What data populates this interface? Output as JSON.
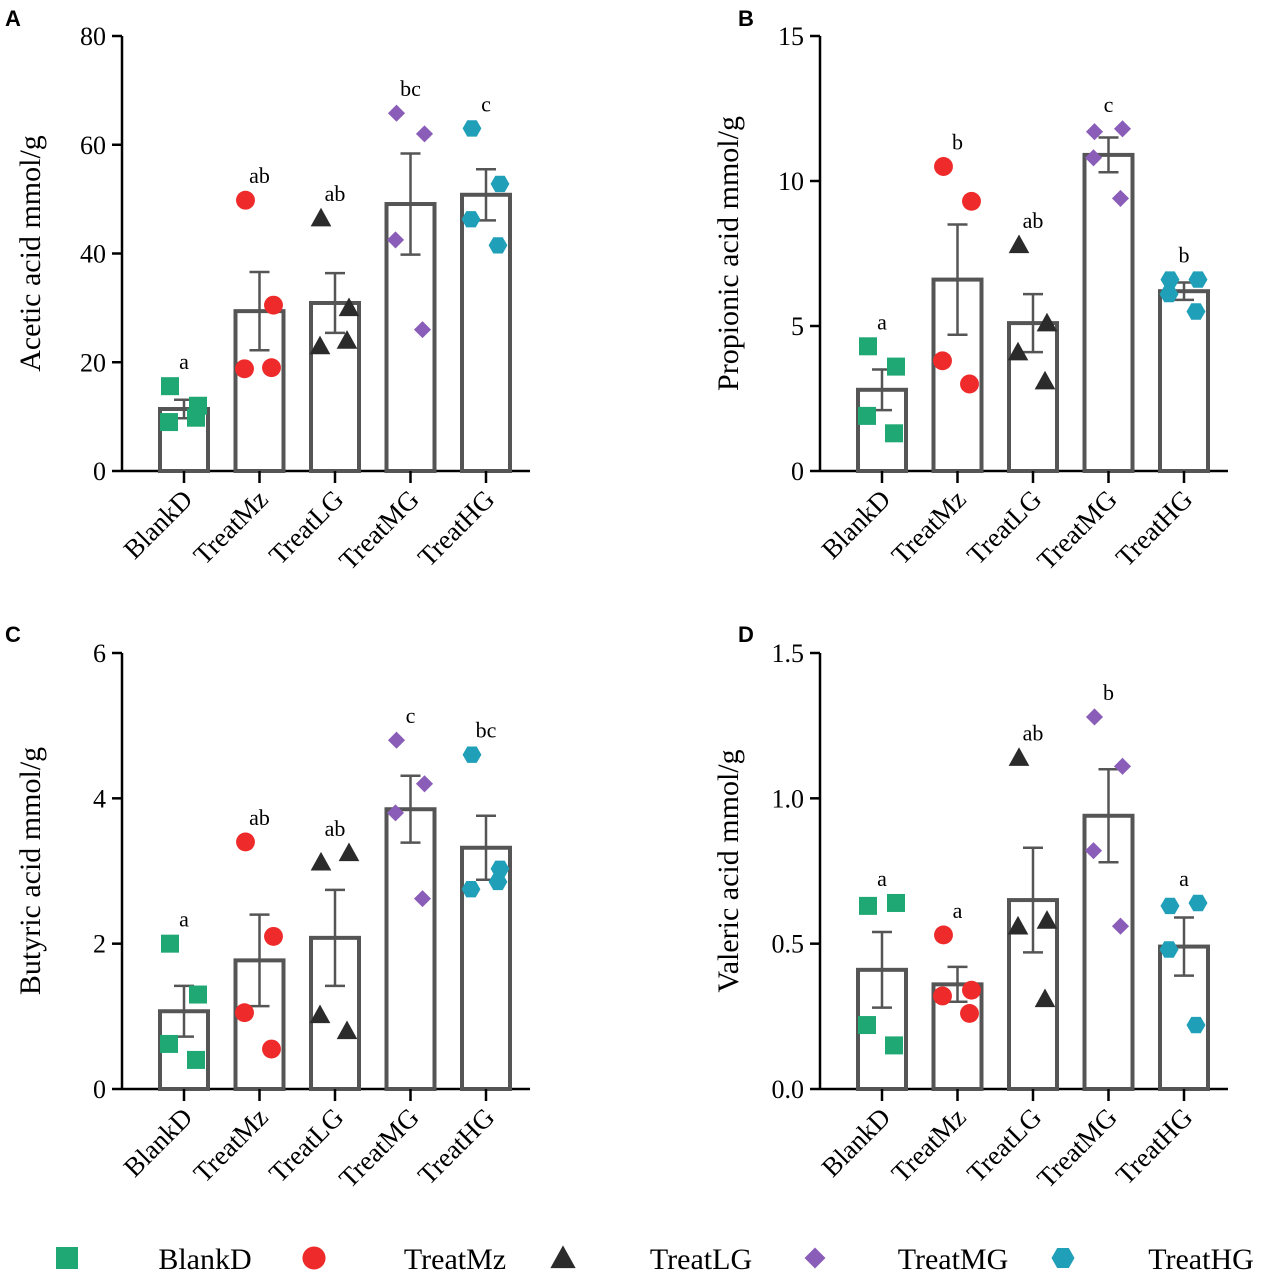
{
  "groups": [
    {
      "name": "BlankD",
      "shape": "square",
      "color": "#1fa774"
    },
    {
      "name": "TreatMz",
      "shape": "circle",
      "color": "#ee2a2a"
    },
    {
      "name": "TreatLG",
      "shape": "triangle",
      "color": "#2b2b2b"
    },
    {
      "name": "TreatMG",
      "shape": "diamond",
      "color": "#8a5db8"
    },
    {
      "name": "TreatHG",
      "shape": "hexagon",
      "color": "#1f9fb8"
    }
  ],
  "chart_data": [
    {
      "panel": "A",
      "type": "bar",
      "ylabel": "Acetic acid mmol/g",
      "ylim": [
        0,
        80
      ],
      "yticks": [
        "0",
        "20",
        "40",
        "60",
        "80"
      ],
      "categories": [
        "BlankD",
        "TreatMz",
        "TreatLG",
        "TreatMG",
        "TreatHG"
      ],
      "means": [
        11.4,
        29.4,
        30.9,
        49.1,
        50.8
      ],
      "sem": [
        1.7,
        7.2,
        5.5,
        9.3,
        4.7
      ],
      "significance": [
        "a",
        "ab",
        "ab",
        "bc",
        "c"
      ],
      "points": [
        [
          15.6,
          12.0,
          9.0,
          9.8
        ],
        [
          49.8,
          30.5,
          18.8,
          19.0
        ],
        [
          46.5,
          30.0,
          23.0,
          24.0
        ],
        [
          65.8,
          62.0,
          42.5,
          26.0
        ],
        [
          63.0,
          52.8,
          46.3,
          41.5
        ]
      ]
    },
    {
      "panel": "B",
      "type": "bar",
      "ylabel": "Propionic acid mmol/g",
      "ylim": [
        0,
        15
      ],
      "yticks": [
        "0",
        "5",
        "10",
        "15"
      ],
      "categories": [
        "BlankD",
        "TreatMz",
        "TreatLG",
        "TreatMG",
        "TreatHG"
      ],
      "means": [
        2.8,
        6.6,
        5.1,
        10.9,
        6.2
      ],
      "sem": [
        0.7,
        1.9,
        1.0,
        0.6,
        0.3
      ],
      "significance": [
        "a",
        "b",
        "ab",
        "c",
        "b"
      ],
      "points": [
        [
          4.3,
          3.6,
          1.9,
          1.3
        ],
        [
          10.5,
          9.3,
          3.8,
          3.0
        ],
        [
          7.8,
          5.1,
          4.1,
          3.1
        ],
        [
          11.7,
          11.8,
          10.8,
          9.4
        ],
        [
          6.6,
          6.6,
          6.1,
          5.5
        ]
      ]
    },
    {
      "panel": "C",
      "type": "bar",
      "ylabel": "Butyric acid mmol/g",
      "ylim": [
        0,
        6
      ],
      "yticks": [
        "0",
        "2",
        "4",
        "6"
      ],
      "categories": [
        "BlankD",
        "TreatMz",
        "TreatLG",
        "TreatMG",
        "TreatHG"
      ],
      "means": [
        1.07,
        1.77,
        2.08,
        3.85,
        3.32
      ],
      "sem": [
        0.35,
        0.63,
        0.66,
        0.46,
        0.44
      ],
      "significance": [
        "a",
        "ab",
        "ab",
        "c",
        "bc"
      ],
      "points": [
        [
          2.0,
          1.3,
          0.62,
          0.4
        ],
        [
          3.4,
          2.1,
          1.05,
          0.55
        ],
        [
          3.12,
          3.25,
          1.02,
          0.8
        ],
        [
          4.8,
          4.2,
          3.8,
          2.62
        ],
        [
          4.6,
          3.03,
          2.75,
          2.85
        ]
      ]
    },
    {
      "panel": "D",
      "type": "bar",
      "ylabel": "Valeric acid mmol/g",
      "ylim": [
        0,
        1.5
      ],
      "yticks": [
        "0.0",
        "0.5",
        "1.0",
        "1.5"
      ],
      "categories": [
        "BlankD",
        "TreatMz",
        "TreatLG",
        "TreatMG",
        "TreatHG"
      ],
      "means": [
        0.41,
        0.36,
        0.65,
        0.94,
        0.49
      ],
      "sem": [
        0.13,
        0.06,
        0.18,
        0.16,
        0.1
      ],
      "significance": [
        "a",
        "a",
        "ab",
        "b",
        "a"
      ],
      "points": [
        [
          0.63,
          0.64,
          0.22,
          0.15
        ],
        [
          0.53,
          0.34,
          0.32,
          0.26
        ],
        [
          1.14,
          0.58,
          0.56,
          0.31
        ],
        [
          1.28,
          1.11,
          0.82,
          0.56
        ],
        [
          0.63,
          0.64,
          0.48,
          0.22
        ]
      ]
    }
  ]
}
